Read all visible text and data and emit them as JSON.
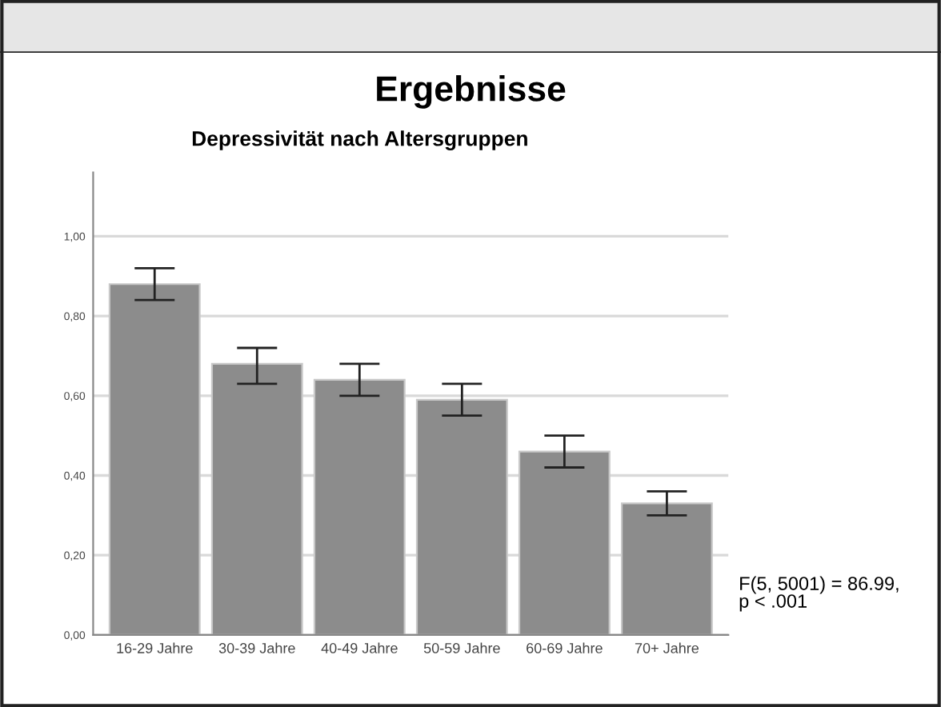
{
  "chart_data": {
    "type": "bar",
    "title": "Ergebnisse",
    "subtitle": "Depressivität nach Altersgruppen",
    "categories": [
      "16-29 Jahre",
      "30-39 Jahre",
      "40-49 Jahre",
      "50-59 Jahre",
      "60-69 Jahre",
      "70+ Jahre"
    ],
    "values": [
      0.88,
      0.68,
      0.64,
      0.59,
      0.46,
      0.33
    ],
    "errors": [
      [
        0.84,
        0.92
      ],
      [
        0.63,
        0.72
      ],
      [
        0.6,
        0.68
      ],
      [
        0.55,
        0.63
      ],
      [
        0.42,
        0.5
      ],
      [
        0.3,
        0.36
      ]
    ],
    "color": "#8c8c8c",
    "ylim": [
      0,
      1.16
    ],
    "yticks": [
      {
        "value": 0,
        "label": "0,00"
      },
      {
        "value": 0.2,
        "label": "0,20"
      },
      {
        "value": 0.4,
        "label": "0,40"
      },
      {
        "value": 0.6,
        "label": "0,60"
      },
      {
        "value": 0.8,
        "label": "0,80"
      },
      {
        "value": 1.0,
        "label": "1,00"
      }
    ],
    "grid": "y",
    "annotations": [
      "F(5, 5001) = 86.99,\np < .001"
    ]
  }
}
